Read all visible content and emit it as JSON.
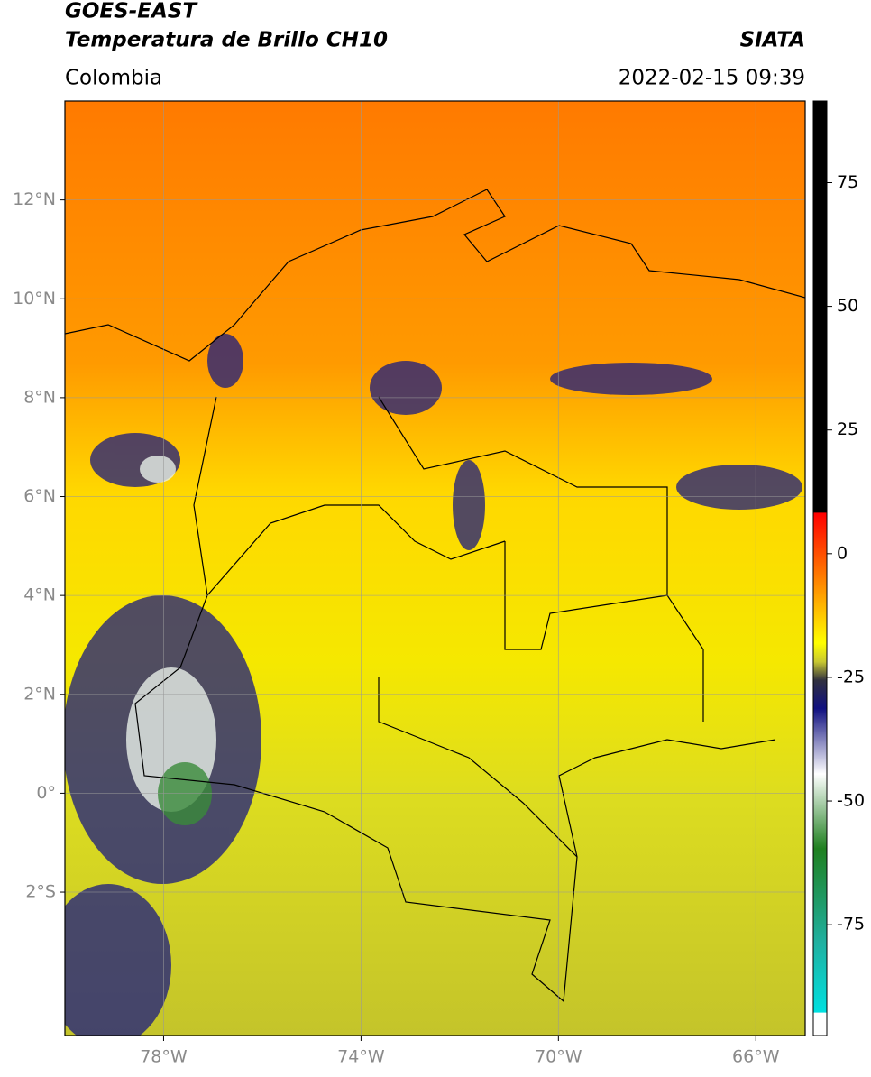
{
  "header": {
    "title": "GOES-EAST",
    "subtitle": "Temperatura de Brillo CH10",
    "source": "SIATA",
    "region": "Colombia",
    "datetime": "2022-02-15 09:39"
  },
  "map": {
    "xlim": [
      -80,
      -65
    ],
    "ylim": [
      -4.9,
      14
    ],
    "xticks": [
      {
        "value": -78,
        "label": "78°W"
      },
      {
        "value": -74,
        "label": "74°W"
      },
      {
        "value": -70,
        "label": "70°W"
      },
      {
        "value": -66,
        "label": "66°W"
      }
    ],
    "yticks": [
      {
        "value": 12,
        "label": "12°N"
      },
      {
        "value": 10,
        "label": "10°N"
      },
      {
        "value": 8,
        "label": "8°N"
      },
      {
        "value": 6,
        "label": "6°N"
      },
      {
        "value": 4,
        "label": "4°N"
      },
      {
        "value": 2,
        "label": "2°N"
      },
      {
        "value": 0,
        "label": "0°"
      },
      {
        "value": -2,
        "label": "2°S"
      }
    ],
    "grid": true
  },
  "colorbar": {
    "lim": [
      -97.4,
      91.5
    ],
    "ticks": [
      75,
      50,
      25,
      0,
      -25,
      -50,
      -75
    ]
  }
}
